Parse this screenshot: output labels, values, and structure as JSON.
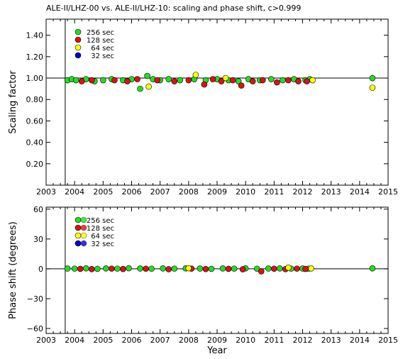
{
  "chart_data": [
    {
      "type": "scatter",
      "title": "ALE-II/LHZ-00 vs. ALE-II/LHZ-10: scaling and phase shift, c>0.999",
      "xlabel": "",
      "ylabel": "Scaling factor",
      "xlim": [
        2003,
        2015
      ],
      "ylim": [
        0,
        1.55
      ],
      "xticks": [
        "2003",
        "2004",
        "2005",
        "2006",
        "2007",
        "2008",
        "2009",
        "2010",
        "2011",
        "2012",
        "2013",
        "2014",
        "2015"
      ],
      "yticks": [
        "0.20",
        "0.40",
        "0.60",
        "0.80",
        "1.00",
        "1.20",
        "1.40"
      ],
      "reference_line": 1.0,
      "vline_x": 2003.67,
      "legend": [
        "256 sec",
        "128 sec",
        "64 sec",
        "32 sec"
      ],
      "legend_position": "top-left",
      "series_colors": {
        "256 sec": "#22dd22",
        "128 sec": "#dd1111",
        "64 sec": "#ffff00",
        "32 sec": "#0000cc"
      },
      "series": [
        {
          "name": "256 sec",
          "points": [
            [
              2003.75,
              0.98
            ],
            [
              2003.9,
              0.99
            ],
            [
              2004.05,
              0.98
            ],
            [
              2004.4,
              0.99
            ],
            [
              2004.7,
              0.97
            ],
            [
              2005.0,
              0.98
            ],
            [
              2005.3,
              0.99
            ],
            [
              2005.7,
              0.98
            ],
            [
              2006.0,
              0.99
            ],
            [
              2006.3,
              0.9
            ],
            [
              2006.55,
              1.02
            ],
            [
              2006.75,
              0.99
            ],
            [
              2007.0,
              0.98
            ],
            [
              2007.3,
              0.99
            ],
            [
              2007.7,
              0.98
            ],
            [
              2008.2,
              0.99
            ],
            [
              2008.6,
              0.98
            ],
            [
              2009.0,
              0.99
            ],
            [
              2009.4,
              0.98
            ],
            [
              2009.75,
              0.97
            ],
            [
              2010.1,
              0.99
            ],
            [
              2010.5,
              0.98
            ],
            [
              2010.9,
              0.99
            ],
            [
              2011.3,
              0.98
            ],
            [
              2011.7,
              0.99
            ],
            [
              2012.1,
              0.98
            ],
            [
              2012.25,
              0.99
            ],
            [
              2014.45,
              1.0
            ]
          ]
        },
        {
          "name": "128 sec",
          "points": [
            [
              2004.25,
              0.97
            ],
            [
              2004.6,
              0.98
            ],
            [
              2005.4,
              0.98
            ],
            [
              2005.85,
              0.97
            ],
            [
              2006.2,
              0.99
            ],
            [
              2006.9,
              0.98
            ],
            [
              2007.5,
              0.97
            ],
            [
              2008.0,
              0.98
            ],
            [
              2008.55,
              0.94
            ],
            [
              2008.85,
              0.99
            ],
            [
              2009.15,
              0.97
            ],
            [
              2009.55,
              0.98
            ],
            [
              2009.85,
              0.93
            ],
            [
              2010.25,
              0.97
            ],
            [
              2010.6,
              0.98
            ],
            [
              2011.1,
              0.96
            ],
            [
              2011.5,
              0.98
            ],
            [
              2011.85,
              0.97
            ],
            [
              2012.15,
              0.97
            ]
          ]
        },
        {
          "name": "64 sec",
          "points": [
            [
              2006.6,
              0.92
            ],
            [
              2008.25,
              1.03
            ],
            [
              2009.3,
              1.0
            ],
            [
              2012.35,
              0.98
            ],
            [
              2014.45,
              0.91
            ]
          ]
        },
        {
          "name": "32 sec",
          "points": []
        }
      ]
    },
    {
      "type": "scatter",
      "xlabel": "Year",
      "ylabel": "Phase shift (degrees)",
      "xlim": [
        2003,
        2015
      ],
      "ylim": [
        -65,
        62
      ],
      "xticks": [
        "2003",
        "2004",
        "2005",
        "2006",
        "2007",
        "2008",
        "2009",
        "2010",
        "2011",
        "2012",
        "2013",
        "2014",
        "2015"
      ],
      "yticks": [
        "−60",
        "−30",
        "0",
        "30",
        "60"
      ],
      "reference_line": 0,
      "vline_x": 2003.67,
      "legend": [
        "256 sec",
        "128 sec",
        "64 sec",
        "32 sec"
      ],
      "legend_position": "top-left",
      "series_colors": {
        "256 sec": "#22dd22",
        "128 sec": "#dd1111",
        "64 sec": "#ffff00",
        "32 sec": "#0000cc"
      },
      "series": [
        {
          "name": "256 sec",
          "points": [
            [
              2003.75,
              0.3
            ],
            [
              2004.0,
              0.2
            ],
            [
              2004.4,
              0.5
            ],
            [
              2004.8,
              0.0
            ],
            [
              2005.1,
              0.4
            ],
            [
              2005.5,
              0.2
            ],
            [
              2005.9,
              0.6
            ],
            [
              2006.3,
              0.3
            ],
            [
              2006.7,
              0.1
            ],
            [
              2007.1,
              0.4
            ],
            [
              2007.5,
              0.2
            ],
            [
              2007.9,
              0.5
            ],
            [
              2008.4,
              0.3
            ],
            [
              2008.8,
              0.0
            ],
            [
              2009.2,
              0.4
            ],
            [
              2009.6,
              0.2
            ],
            [
              2010.0,
              0.5
            ],
            [
              2010.4,
              0.1
            ],
            [
              2010.8,
              0.3
            ],
            [
              2011.2,
              0.4
            ],
            [
              2011.6,
              0.2
            ],
            [
              2012.0,
              0.3
            ],
            [
              2012.2,
              0.1
            ],
            [
              2014.45,
              0.5
            ]
          ]
        },
        {
          "name": "128 sec",
          "points": [
            [
              2004.2,
              0.0
            ],
            [
              2004.6,
              -0.3
            ],
            [
              2005.3,
              0.2
            ],
            [
              2005.7,
              -0.2
            ],
            [
              2006.5,
              0.1
            ],
            [
              2007.3,
              -0.4
            ],
            [
              2008.1,
              0.2
            ],
            [
              2008.6,
              -0.2
            ],
            [
              2009.4,
              0.0
            ],
            [
              2009.9,
              -0.5
            ],
            [
              2010.55,
              -2.5
            ],
            [
              2011.0,
              0.1
            ],
            [
              2011.4,
              -0.3
            ],
            [
              2011.8,
              0.2
            ],
            [
              2012.1,
              -0.1
            ]
          ]
        },
        {
          "name": "64 sec",
          "points": [
            [
              2008.0,
              0.6
            ],
            [
              2011.5,
              1.2
            ],
            [
              2012.3,
              0.4
            ]
          ]
        },
        {
          "name": "32 sec",
          "points": []
        }
      ]
    }
  ]
}
